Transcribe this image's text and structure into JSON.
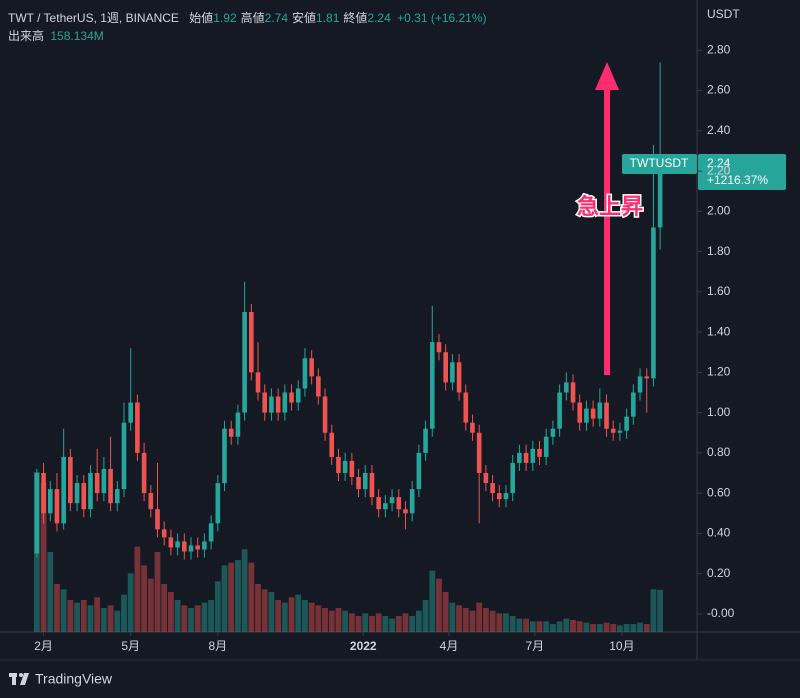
{
  "header": {
    "symbol": "TWT / TetherUS, 1週, BINANCE",
    "fields": [
      {
        "label": "始値",
        "value": "1.92"
      },
      {
        "label": "高値",
        "value": "2.74"
      },
      {
        "label": "安値",
        "value": "1.81"
      },
      {
        "label": "終値",
        "value": "2.24"
      }
    ],
    "change": "+0.31 (+16.21%)",
    "volume_title": "出来高",
    "volume_label": "158.134M"
  },
  "axis_unit": "USDT",
  "price_tag": {
    "symbol": "TWTUSDT",
    "price": "2.24",
    "change": "+1216.37%"
  },
  "annotation": "急上昇",
  "brand": "TradingView",
  "chart_data": {
    "type": "candlestick",
    "up_color": "#26a69a",
    "down_color": "#ef5350",
    "grid": false,
    "xlim": [
      -5.5,
      98.5
    ],
    "xticks": [
      {
        "value": 1,
        "label": "2月"
      },
      {
        "value": 14,
        "label": "5月"
      },
      {
        "value": 27,
        "label": "8月"
      },
      {
        "value": 48.7,
        "label": "2022"
      },
      {
        "value": 61.5,
        "label": "4月"
      },
      {
        "value": 74.3,
        "label": "7月"
      },
      {
        "value": 87.3,
        "label": "10月"
      }
    ],
    "ylim": [
      -0.09,
      3.05
    ],
    "yticks": [
      {
        "value": 0,
        "label": "-0.00"
      },
      {
        "value": 0.2,
        "label": "0.20"
      },
      {
        "value": 0.4,
        "label": "0.40"
      },
      {
        "value": 0.6,
        "label": "0.60"
      },
      {
        "value": 0.8,
        "label": "0.80"
      },
      {
        "value": 1,
        "label": "1.00"
      },
      {
        "value": 1.2,
        "label": "1.20"
      },
      {
        "value": 1.4,
        "label": "1.40"
      },
      {
        "value": 1.6,
        "label": "1.60"
      },
      {
        "value": 1.8,
        "label": "1.80"
      },
      {
        "value": 2,
        "label": "2.00"
      },
      {
        "value": 2.2,
        "label": "2.20"
      },
      {
        "value": 2.4,
        "label": "2.40"
      },
      {
        "value": 2.6,
        "label": "2.60"
      },
      {
        "value": 2.8,
        "label": "2.80"
      }
    ],
    "ohlc": [
      [
        0.3,
        0.72,
        0.28,
        0.7
      ],
      [
        0.7,
        0.75,
        0.45,
        0.5
      ],
      [
        0.5,
        0.66,
        0.46,
        0.62
      ],
      [
        0.62,
        0.7,
        0.41,
        0.45
      ],
      [
        0.45,
        0.92,
        0.42,
        0.78
      ],
      [
        0.78,
        0.82,
        0.51,
        0.55
      ],
      [
        0.55,
        0.69,
        0.51,
        0.65
      ],
      [
        0.65,
        0.69,
        0.48,
        0.52
      ],
      [
        0.52,
        0.74,
        0.48,
        0.7
      ],
      [
        0.7,
        0.82,
        0.56,
        0.6
      ],
      [
        0.6,
        0.78,
        0.56,
        0.72
      ],
      [
        0.72,
        0.88,
        0.51,
        0.55
      ],
      [
        0.55,
        0.66,
        0.51,
        0.62
      ],
      [
        0.62,
        1.05,
        0.58,
        0.95
      ],
      [
        0.95,
        1.32,
        0.91,
        1.05
      ],
      [
        1.05,
        1.09,
        0.76,
        0.8
      ],
      [
        0.8,
        0.85,
        0.56,
        0.6
      ],
      [
        0.6,
        0.64,
        0.48,
        0.52
      ],
      [
        0.52,
        0.75,
        0.38,
        0.42
      ],
      [
        0.42,
        0.46,
        0.34,
        0.38
      ],
      [
        0.38,
        0.42,
        0.29,
        0.33
      ],
      [
        0.33,
        0.4,
        0.29,
        0.36
      ],
      [
        0.36,
        0.4,
        0.27,
        0.31
      ],
      [
        0.31,
        0.38,
        0.27,
        0.34
      ],
      [
        0.34,
        0.38,
        0.28,
        0.32
      ],
      [
        0.32,
        0.4,
        0.28,
        0.36
      ],
      [
        0.36,
        0.49,
        0.32,
        0.45
      ],
      [
        0.45,
        0.69,
        0.41,
        0.65
      ],
      [
        0.65,
        0.96,
        0.61,
        0.92
      ],
      [
        0.92,
        0.96,
        0.84,
        0.88
      ],
      [
        0.88,
        1.04,
        0.84,
        1.0
      ],
      [
        1.0,
        1.65,
        0.96,
        1.5
      ],
      [
        1.5,
        1.54,
        1.16,
        1.2
      ],
      [
        1.2,
        1.35,
        1.06,
        1.1
      ],
      [
        1.1,
        1.14,
        0.96,
        1.0
      ],
      [
        1.0,
        1.12,
        0.96,
        1.08
      ],
      [
        1.08,
        1.12,
        0.96,
        1.0
      ],
      [
        1.0,
        1.14,
        0.96,
        1.1
      ],
      [
        1.1,
        1.14,
        1.01,
        1.05
      ],
      [
        1.05,
        1.16,
        1.01,
        1.12
      ],
      [
        1.12,
        1.32,
        1.08,
        1.27
      ],
      [
        1.27,
        1.31,
        1.14,
        1.18
      ],
      [
        1.18,
        1.22,
        1.04,
        1.08
      ],
      [
        1.08,
        1.12,
        0.86,
        0.9
      ],
      [
        0.9,
        0.94,
        0.74,
        0.78
      ],
      [
        0.78,
        0.82,
        0.66,
        0.7
      ],
      [
        0.7,
        0.8,
        0.66,
        0.76
      ],
      [
        0.76,
        0.8,
        0.64,
        0.68
      ],
      [
        0.68,
        0.72,
        0.58,
        0.62
      ],
      [
        0.62,
        0.74,
        0.58,
        0.7
      ],
      [
        0.7,
        0.74,
        0.54,
        0.58
      ],
      [
        0.58,
        0.62,
        0.48,
        0.52
      ],
      [
        0.52,
        0.59,
        0.48,
        0.55
      ],
      [
        0.55,
        0.62,
        0.51,
        0.58
      ],
      [
        0.58,
        0.62,
        0.48,
        0.52
      ],
      [
        0.52,
        0.56,
        0.42,
        0.5
      ],
      [
        0.5,
        0.66,
        0.46,
        0.62
      ],
      [
        0.62,
        0.84,
        0.58,
        0.8
      ],
      [
        0.8,
        0.96,
        0.76,
        0.92
      ],
      [
        0.92,
        1.53,
        0.88,
        1.35
      ],
      [
        1.35,
        1.39,
        1.26,
        1.3
      ],
      [
        1.3,
        1.34,
        1.11,
        1.15
      ],
      [
        1.15,
        1.29,
        1.11,
        1.25
      ],
      [
        1.25,
        1.29,
        1.06,
        1.1
      ],
      [
        1.1,
        1.14,
        0.91,
        0.95
      ],
      [
        0.95,
        0.99,
        0.86,
        0.9
      ],
      [
        0.9,
        0.94,
        0.45,
        0.7
      ],
      [
        0.7,
        0.74,
        0.61,
        0.65
      ],
      [
        0.65,
        0.69,
        0.56,
        0.6
      ],
      [
        0.6,
        0.64,
        0.53,
        0.57
      ],
      [
        0.57,
        0.64,
        0.53,
        0.6
      ],
      [
        0.6,
        0.79,
        0.56,
        0.75
      ],
      [
        0.75,
        0.84,
        0.71,
        0.8
      ],
      [
        0.8,
        0.84,
        0.71,
        0.75
      ],
      [
        0.75,
        0.86,
        0.71,
        0.82
      ],
      [
        0.82,
        0.86,
        0.74,
        0.78
      ],
      [
        0.78,
        0.92,
        0.74,
        0.88
      ],
      [
        0.88,
        0.96,
        0.84,
        0.92
      ],
      [
        0.92,
        1.14,
        0.88,
        1.1
      ],
      [
        1.1,
        1.2,
        1.06,
        1.15
      ],
      [
        1.15,
        1.19,
        1.01,
        1.05
      ],
      [
        1.05,
        1.09,
        0.91,
        0.95
      ],
      [
        0.95,
        1.06,
        0.91,
        1.02
      ],
      [
        1.02,
        1.06,
        0.93,
        0.97
      ],
      [
        0.97,
        1.12,
        0.93,
        1.05
      ],
      [
        1.05,
        1.09,
        0.88,
        0.92
      ],
      [
        0.92,
        0.96,
        0.86,
        0.9
      ],
      [
        0.9,
        0.95,
        0.86,
        0.91
      ],
      [
        0.91,
        1.02,
        0.87,
        0.98
      ],
      [
        0.98,
        1.14,
        0.94,
        1.1
      ],
      [
        1.1,
        1.22,
        1.06,
        1.18
      ],
      [
        1.18,
        1.22,
        1.0,
        1.17
      ],
      [
        1.17,
        2.33,
        1.13,
        1.92
      ],
      [
        1.92,
        2.74,
        1.81,
        2.24
      ]
    ],
    "volumes": [
      600,
      560,
      300,
      180,
      160,
      120,
      110,
      120,
      100,
      130,
      90,
      100,
      80,
      140,
      220,
      320,
      250,
      200,
      300,
      180,
      150,
      120,
      100,
      90,
      100,
      110,
      120,
      190,
      250,
      260,
      270,
      310,
      260,
      180,
      160,
      150,
      120,
      110,
      130,
      140,
      120,
      110,
      100,
      90,
      80,
      90,
      80,
      70,
      60,
      70,
      60,
      70,
      60,
      50,
      60,
      70,
      60,
      80,
      120,
      230,
      200,
      150,
      110,
      100,
      90,
      80,
      110,
      90,
      80,
      70,
      70,
      60,
      50,
      50,
      40,
      40,
      40,
      30,
      40,
      50,
      45,
      40,
      35,
      30,
      30,
      35,
      30,
      25,
      30,
      30,
      35,
      30,
      160,
      158.134
    ]
  }
}
